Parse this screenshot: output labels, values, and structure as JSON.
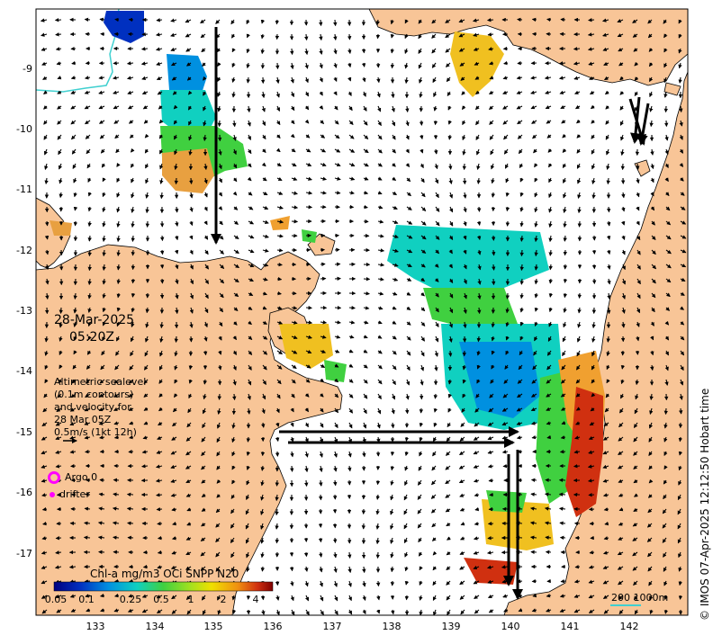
{
  "date": {
    "day": "28-Mar-2025",
    "time": "05:20Z"
  },
  "velocity_legend": {
    "lines": [
      "Altimetric sealevel",
      "(0.1m contours)",
      "and velocity for",
      "28 Mar 05Z",
      "0.5m/s (1kt 12h)"
    ]
  },
  "symbols": {
    "argo_label": "Argo 0",
    "drifter_label": "drifter"
  },
  "colorbar": {
    "title": "Chl-a mg/m3 OCi SNPP N20",
    "ticks": [
      "0.05",
      "0.1",
      "0.25",
      "0.5",
      "1",
      "2",
      "4"
    ]
  },
  "axes": {
    "x_ticks": [
      "133",
      "134",
      "135",
      "136",
      "137",
      "138",
      "139",
      "140",
      "141",
      "142"
    ],
    "y_ticks": [
      "-9",
      "-10",
      "-11",
      "-12",
      "-13",
      "-14",
      "-15",
      "-16",
      "-17"
    ]
  },
  "scale_bar": {
    "label": "200  1000m"
  },
  "credit": "© IMOS 07-Apr-2025 12:12:50 Hobart time",
  "colors": {
    "land": "#f8c597",
    "sea": "#ffffff",
    "depth_contour": "#40d0d0",
    "argo": "#ff00ff"
  }
}
